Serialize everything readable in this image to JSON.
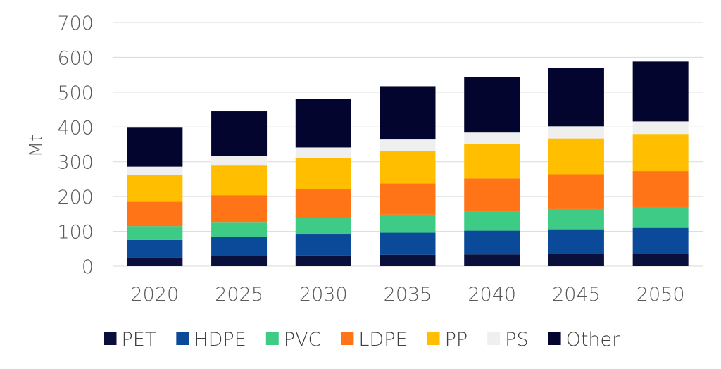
{
  "chart_data": {
    "type": "bar",
    "stacked": true,
    "categories": [
      "2020",
      "2025",
      "2030",
      "2035",
      "2040",
      "2045",
      "2050"
    ],
    "ylabel": "Mt",
    "xlabel": "",
    "ylim": [
      0,
      700
    ],
    "yticks": [
      "0",
      "100",
      "200",
      "300",
      "400",
      "500",
      "600",
      "700"
    ],
    "grid": true,
    "legend_position": "bottom",
    "series": [
      {
        "name": "PET",
        "color": "#0a0f3c",
        "values": [
          25,
          29,
          31,
          33,
          34,
          35,
          36
        ]
      },
      {
        "name": "HDPE",
        "color": "#0a4a99",
        "values": [
          50,
          55,
          60,
          63,
          68,
          71,
          74
        ]
      },
      {
        "name": "PVC",
        "color": "#3ecb86",
        "values": [
          40,
          43,
          48,
          52,
          55,
          58,
          60
        ]
      },
      {
        "name": "LDPE",
        "color": "#ff7417",
        "values": [
          70,
          77,
          82,
          90,
          95,
          100,
          103
        ]
      },
      {
        "name": "PP",
        "color": "#ffbf00",
        "values": [
          77,
          85,
          90,
          94,
          98,
          103,
          107
        ]
      },
      {
        "name": "PS",
        "color": "#efefef",
        "values": [
          24,
          28,
          30,
          32,
          34,
          35,
          36
        ]
      },
      {
        "name": "Other",
        "color": "#03052e",
        "values": [
          112,
          128,
          140,
          153,
          160,
          167,
          172
        ]
      }
    ]
  }
}
